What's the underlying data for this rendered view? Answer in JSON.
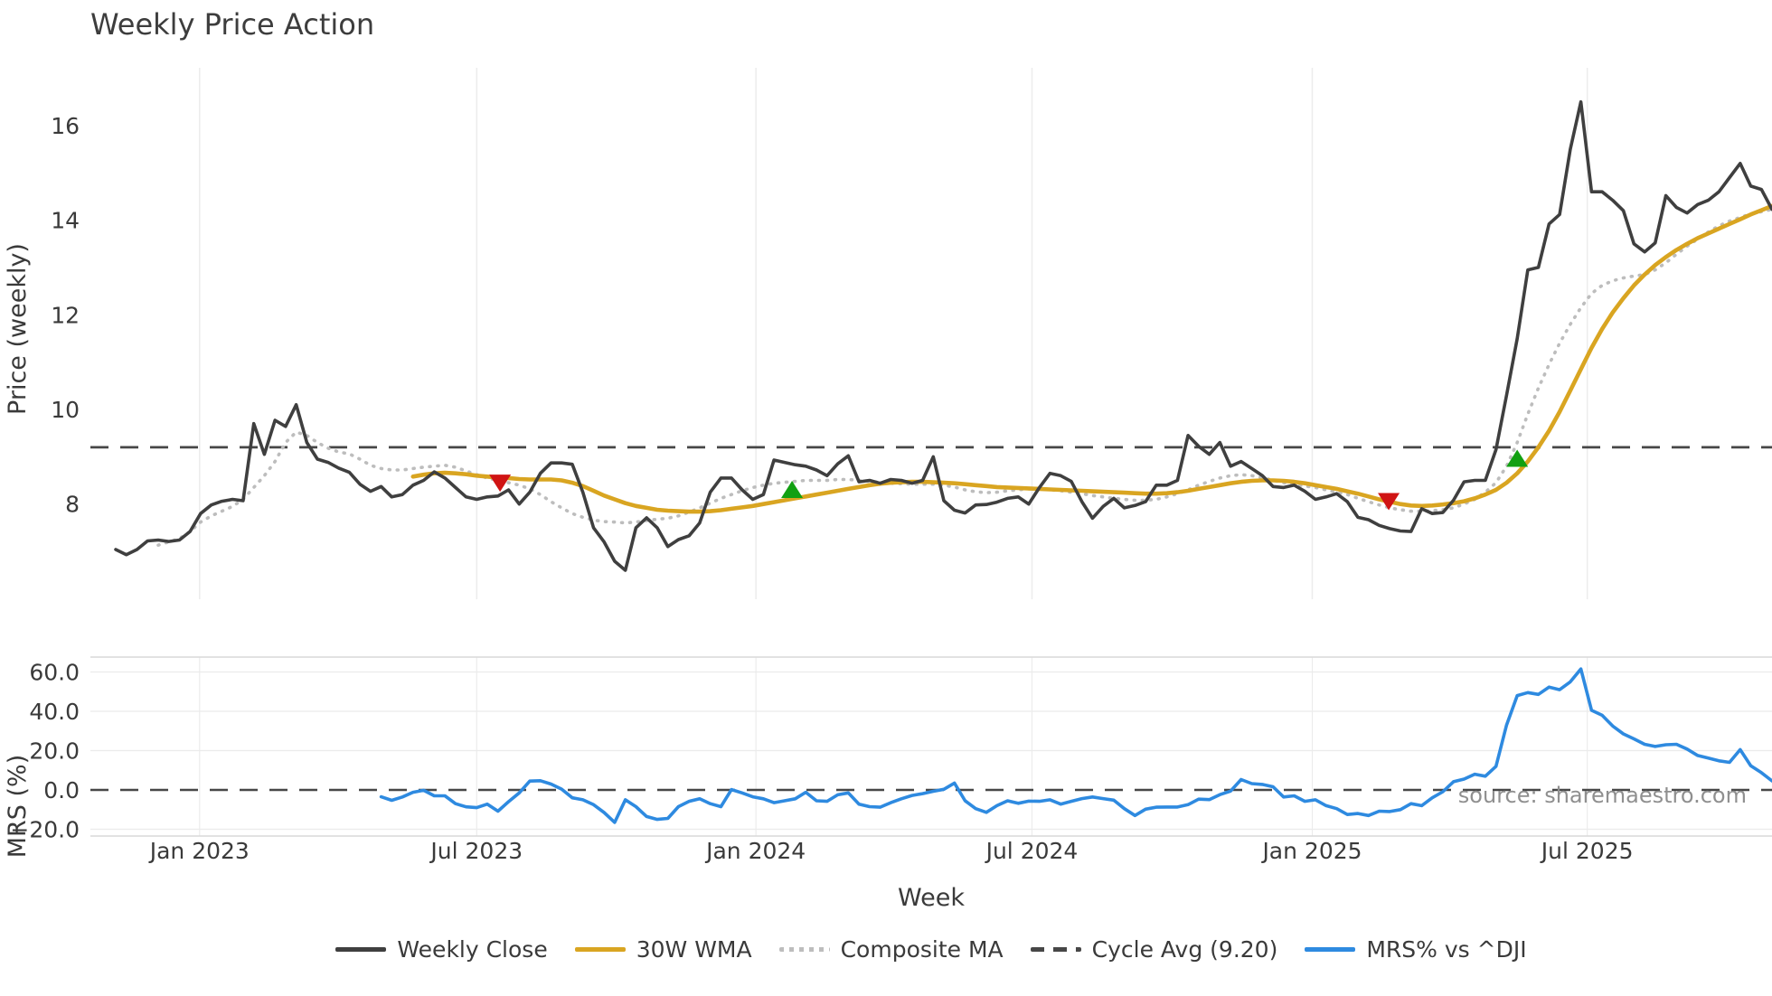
{
  "title": "Weekly Price Action",
  "source_text": "source: sharemaestro.com",
  "axes": {
    "price_label": "Price (weekly)",
    "mrs_label": "MRS (%)",
    "x_label": "Week"
  },
  "colors": {
    "weekly_close": "#3f3f3f",
    "wma30": "#d9a521",
    "composite_ma": "#bdbdbd",
    "cycle_avg": "#474747",
    "mrs": "#2e8ae0",
    "sell_marker": "#d01414",
    "buy_marker": "#12a012",
    "grid": "#ececec",
    "panel_border": "#d9d9d9",
    "tick_text": "#3a3a3a",
    "source_text": "#8f8f8f"
  },
  "legend": {
    "items": [
      {
        "label": "Weekly Close",
        "color": "#3f3f3f",
        "style": "solid"
      },
      {
        "label": "30W WMA",
        "color": "#d9a521",
        "style": "solid"
      },
      {
        "label": "Composite MA",
        "color": "#bdbdbd",
        "style": "dotted"
      },
      {
        "label": "Cycle Avg (9.20)",
        "color": "#474747",
        "style": "dashed"
      },
      {
        "label": "MRS% vs ^DJI",
        "color": "#2e8ae0",
        "style": "solid"
      }
    ]
  },
  "chart_data": {
    "type": "line",
    "title": "Weekly Price Action",
    "xlabel": "Week",
    "panels": [
      {
        "name": "price",
        "ylabel": "Price (weekly)",
        "ylim": [
          6.0,
          17.2
        ],
        "grid": "vertical"
      },
      {
        "name": "mrs",
        "ylabel": "MRS (%)",
        "ylim": [
          -23.5,
          67.5
        ],
        "grid": "both"
      }
    ],
    "weeks_total": 156,
    "cycle_avg": 9.2,
    "x_ticks": [
      {
        "label": "Jan 2023",
        "week": 7.9
      },
      {
        "label": "Jul 2023",
        "week": 34.0
      },
      {
        "label": "Jan 2024",
        "week": 60.3
      },
      {
        "label": "Jul 2024",
        "week": 86.3
      },
      {
        "label": "Jan 2025",
        "week": 112.7
      },
      {
        "label": "Jul 2025",
        "week": 138.6
      }
    ],
    "price_ticks": [
      {
        "v": 8,
        "label": "8"
      },
      {
        "v": 10,
        "label": "10"
      },
      {
        "v": 12,
        "label": "12"
      },
      {
        "v": 14,
        "label": "14"
      },
      {
        "v": 16,
        "label": "16"
      }
    ],
    "mrs_ticks": [
      {
        "v": 60,
        "label": "60.0"
      },
      {
        "v": 40,
        "label": "40.0"
      },
      {
        "v": 20,
        "label": "20.0"
      },
      {
        "v": 0,
        "label": "0.0"
      },
      {
        "v": -20,
        "label": "−20.0"
      }
    ],
    "series": {
      "weekly_close": {
        "name": "Weekly Close",
        "start_week": 0,
        "values": [
          7.04,
          6.93,
          7.04,
          7.22,
          7.24,
          7.21,
          7.24,
          7.42,
          7.8,
          7.98,
          8.06,
          8.1,
          8.07,
          9.7,
          9.05,
          9.77,
          9.64,
          10.1,
          9.3,
          8.95,
          8.88,
          8.76,
          8.67,
          8.42,
          8.27,
          8.37,
          8.15,
          8.2,
          8.4,
          8.5,
          8.68,
          8.55,
          8.35,
          8.15,
          8.1,
          8.15,
          8.17,
          8.3,
          8.0,
          8.25,
          8.65,
          8.87,
          8.87,
          8.84,
          8.25,
          7.5,
          7.2,
          6.79,
          6.6,
          7.5,
          7.71,
          7.5,
          7.1,
          7.25,
          7.33,
          7.6,
          8.25,
          8.55,
          8.55,
          8.3,
          8.1,
          8.2,
          8.93,
          8.88,
          8.83,
          8.8,
          8.72,
          8.6,
          8.85,
          9.02,
          8.47,
          8.5,
          8.44,
          8.52,
          8.5,
          8.44,
          8.5,
          9.0,
          8.07,
          7.87,
          7.81,
          7.98,
          7.99,
          8.04,
          8.12,
          8.15,
          8.0,
          8.35,
          8.65,
          8.6,
          8.48,
          8.05,
          7.7,
          7.95,
          8.12,
          7.92,
          7.97,
          8.05,
          8.4,
          8.4,
          8.5,
          9.45,
          9.22,
          9.05,
          9.3,
          8.8,
          8.9,
          8.75,
          8.6,
          8.37,
          8.35,
          8.4,
          8.27,
          8.1,
          8.15,
          8.22,
          8.05,
          7.72,
          7.67,
          7.55,
          7.48,
          7.43,
          7.42,
          7.9,
          7.8,
          7.82,
          8.08,
          8.47,
          8.5,
          8.5,
          9.15,
          10.3,
          11.5,
          12.95,
          13.0,
          13.92,
          14.12,
          15.5,
          16.5,
          14.6,
          14.6,
          14.42,
          14.2,
          13.5,
          13.33,
          13.52,
          14.52,
          14.27,
          14.15,
          14.33,
          14.42,
          14.6,
          14.9,
          15.2,
          14.72,
          14.65,
          14.23
        ]
      },
      "composite_ma": {
        "name": "Composite MA",
        "start_week": 4,
        "values": [
          7.13,
          7.2,
          7.27,
          7.42,
          7.62,
          7.75,
          7.85,
          7.95,
          8.1,
          8.35,
          8.6,
          8.9,
          9.3,
          9.52,
          9.45,
          9.3,
          9.18,
          9.1,
          9.06,
          8.95,
          8.82,
          8.75,
          8.72,
          8.72,
          8.75,
          8.78,
          8.8,
          8.82,
          8.78,
          8.7,
          8.62,
          8.55,
          8.5,
          8.45,
          8.4,
          8.32,
          8.2,
          8.05,
          7.92,
          7.8,
          7.72,
          7.66,
          7.63,
          7.62,
          7.6,
          7.62,
          7.65,
          7.68,
          7.7,
          7.75,
          7.83,
          7.92,
          8.02,
          8.12,
          8.2,
          8.28,
          8.35,
          8.4,
          8.44,
          8.46,
          8.48,
          8.5,
          8.5,
          8.5,
          8.52,
          8.52,
          8.5,
          8.48,
          8.46,
          8.44,
          8.43,
          8.42,
          8.42,
          8.42,
          8.4,
          8.36,
          8.3,
          8.26,
          8.24,
          8.25,
          8.28,
          8.3,
          8.32,
          8.32,
          8.3,
          8.28,
          8.25,
          8.22,
          8.18,
          8.15,
          8.12,
          8.1,
          8.08,
          8.08,
          8.1,
          8.15,
          8.22,
          8.3,
          8.4,
          8.48,
          8.55,
          8.6,
          8.62,
          8.6,
          8.56,
          8.5,
          8.45,
          8.42,
          8.38,
          8.35,
          8.3,
          8.25,
          8.2,
          8.12,
          8.05,
          7.98,
          7.92,
          7.88,
          7.85,
          7.85,
          7.86,
          7.88,
          7.92,
          8.0,
          8.1,
          8.25,
          8.45,
          8.8,
          9.3,
          9.9,
          10.45,
          10.95,
          11.4,
          11.8,
          12.15,
          12.45,
          12.62,
          12.72,
          12.78,
          12.82,
          12.85,
          12.95,
          13.1,
          13.28,
          13.45,
          13.6,
          13.75,
          13.88,
          13.98,
          14.06,
          14.13,
          14.18,
          14.23
        ]
      },
      "wma30": {
        "name": "30W WMA",
        "start_week": 28,
        "values": [
          8.58,
          8.62,
          8.65,
          8.66,
          8.65,
          8.63,
          8.6,
          8.58,
          8.56,
          8.55,
          8.53,
          8.52,
          8.52,
          8.52,
          8.5,
          8.45,
          8.38,
          8.28,
          8.18,
          8.1,
          8.02,
          7.96,
          7.92,
          7.88,
          7.86,
          7.85,
          7.84,
          7.84,
          7.85,
          7.87,
          7.9,
          7.93,
          7.96,
          8.0,
          8.04,
          8.08,
          8.12,
          8.16,
          8.2,
          8.24,
          8.28,
          8.32,
          8.36,
          8.4,
          8.43,
          8.45,
          8.46,
          8.47,
          8.47,
          8.46,
          8.45,
          8.44,
          8.42,
          8.4,
          8.38,
          8.36,
          8.35,
          8.34,
          8.33,
          8.32,
          8.31,
          8.3,
          8.29,
          8.28,
          8.27,
          8.26,
          8.25,
          8.24,
          8.23,
          8.22,
          8.22,
          8.23,
          8.25,
          8.28,
          8.32,
          8.36,
          8.4,
          8.44,
          8.47,
          8.49,
          8.5,
          8.5,
          8.49,
          8.47,
          8.44,
          8.4,
          8.36,
          8.32,
          8.27,
          8.22,
          8.16,
          8.1,
          8.05,
          8.0,
          7.97,
          7.96,
          7.97,
          7.99,
          8.02,
          8.06,
          8.12,
          8.2,
          8.3,
          8.45,
          8.65,
          8.9,
          9.2,
          9.55,
          9.95,
          10.4,
          10.85,
          11.3,
          11.7,
          12.05,
          12.35,
          12.62,
          12.85,
          13.05,
          13.22,
          13.37,
          13.5,
          13.62,
          13.72,
          13.82,
          13.92,
          14.02,
          14.12,
          14.21,
          14.3
        ]
      },
      "mrs": {
        "name": "MRS% vs ^DJI",
        "start_week": 25,
        "values": [
          -3.5,
          -5.3,
          -3.6,
          -1.2,
          -0.2,
          -3.0,
          -3.0,
          -7.0,
          -8.6,
          -9.0,
          -7.2,
          -10.8,
          -6.0,
          -1.5,
          4.5,
          4.7,
          3.0,
          0.4,
          -4.0,
          -5.0,
          -7.5,
          -11.5,
          -16.5,
          -5.0,
          -8.5,
          -13.5,
          -15.0,
          -14.5,
          -8.5,
          -5.8,
          -4.5,
          -7.0,
          -8.5,
          0.2,
          -1.5,
          -3.5,
          -4.5,
          -6.5,
          -5.5,
          -4.5,
          -1.2,
          -5.5,
          -5.8,
          -2.5,
          -1.5,
          -7.2,
          -8.5,
          -8.8,
          -6.5,
          -4.5,
          -2.8,
          -1.9,
          -0.7,
          0.3,
          3.5,
          -5.5,
          -9.5,
          -11.4,
          -8.0,
          -5.5,
          -6.8,
          -5.7,
          -5.8,
          -5.0,
          -7.2,
          -5.8,
          -4.4,
          -3.6,
          -4.4,
          -5.2,
          -9.5,
          -13.0,
          -9.8,
          -8.8,
          -8.7,
          -8.7,
          -7.5,
          -4.7,
          -4.9,
          -2.4,
          -0.6,
          5.3,
          3.2,
          2.8,
          1.6,
          -3.6,
          -3.0,
          -5.8,
          -5.0,
          -8.0,
          -9.5,
          -12.5,
          -12.0,
          -13.0,
          -10.8,
          -11.0,
          -10.0,
          -7.0,
          -8.0,
          -4.0,
          -0.9,
          4.2,
          5.5,
          8.0,
          7.0,
          12.0,
          33.0,
          48.0,
          49.5,
          48.6,
          52.3,
          51.0,
          55.0,
          61.5,
          40.5,
          38.0,
          32.5,
          28.5,
          26.0,
          23.2,
          22.1,
          23.0,
          23.2,
          20.8,
          17.5,
          16.2,
          14.8,
          14.0,
          20.5,
          12.3,
          8.8,
          4.6
        ]
      }
    },
    "markers": {
      "sell": [
        {
          "week": 36.2,
          "price": 8.45
        },
        {
          "week": 119.9,
          "price": 8.06
        }
      ],
      "buy": [
        {
          "week": 63.7,
          "price": 8.3
        },
        {
          "week": 132.0,
          "price": 8.96
        }
      ]
    },
    "legend_position": "bottom-center",
    "grid_on": true
  }
}
